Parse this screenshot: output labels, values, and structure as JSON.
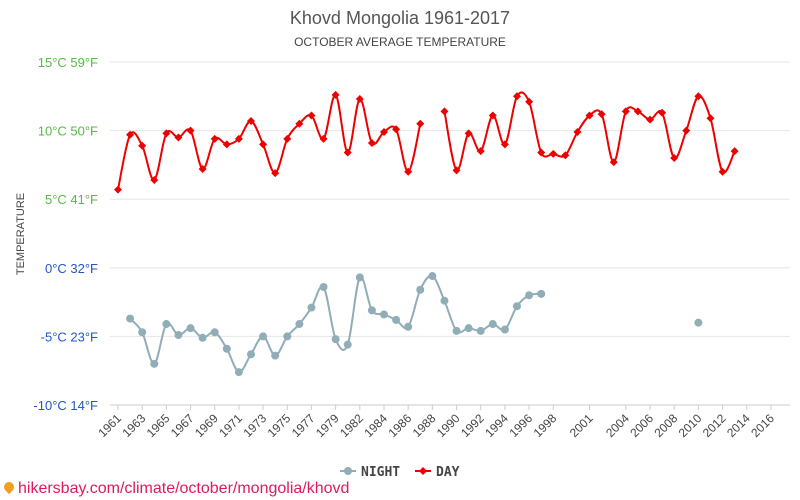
{
  "chart_data": {
    "type": "line",
    "title": "Khovd Mongolia 1961-2017",
    "subtitle": "OCTOBER AVERAGE TEMPERATURE",
    "ylabel": "TEMPERATURE",
    "ylim": [
      -10,
      15
    ],
    "y_ticks": [
      {
        "value": 15,
        "label": "15°C 59°F",
        "color": "#55bb44"
      },
      {
        "value": 10,
        "label": "10°C 50°F",
        "color": "#55bb44"
      },
      {
        "value": 5,
        "label": "5°C 41°F",
        "color": "#55bb44"
      },
      {
        "value": 0,
        "label": "0°C 32°F",
        "color": "#2255cc"
      },
      {
        "value": -5,
        "label": "-5°C 23°F",
        "color": "#2255cc"
      },
      {
        "value": -10,
        "label": "-10°C 14°F",
        "color": "#2255cc"
      }
    ],
    "x_tick_labels": [
      "1961",
      "1963",
      "1965",
      "1967",
      "1969",
      "1971",
      "1973",
      "1975",
      "1977",
      "1979",
      "1982",
      "1984",
      "1986",
      "1988",
      "1990",
      "1992",
      "1994",
      "1996",
      "1998",
      "2001",
      "2004",
      "2006",
      "2008",
      "2010",
      "2012",
      "2014",
      "2016"
    ],
    "x": [
      1961,
      1962,
      1963,
      1964,
      1965,
      1966,
      1967,
      1968,
      1969,
      1970,
      1971,
      1972,
      1973,
      1974,
      1975,
      1976,
      1977,
      1978,
      1979,
      1980,
      1982,
      1983,
      1984,
      1985,
      1986,
      1987,
      1988,
      1989,
      1990,
      1991,
      1992,
      1993,
      1994,
      1995,
      1996,
      1997,
      1998,
      1999,
      2000,
      2001,
      2002,
      2003,
      2004,
      2005,
      2006,
      2007,
      2008,
      2009,
      2010,
      2011,
      2012,
      2013,
      2014,
      2015,
      2016,
      2017
    ],
    "series": [
      {
        "name": "NIGHT",
        "color": "#90adb8",
        "marker": "circle",
        "values": [
          null,
          -3.7,
          -4.7,
          -7.0,
          -4.1,
          -4.9,
          -4.4,
          -5.1,
          -4.7,
          -5.9,
          -7.6,
          -6.3,
          -5.0,
          -6.4,
          -5.0,
          -4.1,
          -2.9,
          -1.4,
          -5.2,
          -5.6,
          -0.7,
          -3.1,
          -3.4,
          -3.8,
          -4.3,
          -1.6,
          -0.6,
          -2.4,
          -4.6,
          -4.4,
          -4.6,
          -4.1,
          -4.5,
          -2.8,
          -2.0,
          -1.9,
          null,
          null,
          null,
          null,
          null,
          null,
          null,
          null,
          null,
          null,
          null,
          null,
          -4.0,
          null,
          null,
          null,
          null,
          null,
          null,
          null
        ]
      },
      {
        "name": "DAY",
        "color": "#ee0000",
        "marker": "diamond",
        "values": [
          5.7,
          9.7,
          8.9,
          6.4,
          9.8,
          9.5,
          10.0,
          7.2,
          9.4,
          9.0,
          9.4,
          10.7,
          9.0,
          6.9,
          9.4,
          10.5,
          11.1,
          9.4,
          12.6,
          8.4,
          12.3,
          9.1,
          9.9,
          10.1,
          7.0,
          10.5,
          null,
          11.4,
          7.1,
          9.8,
          8.5,
          11.1,
          9.0,
          12.5,
          12.1,
          8.4,
          8.3,
          8.2,
          9.9,
          11.1,
          11.2,
          7.7,
          11.4,
          11.4,
          10.8,
          11.3,
          8.0,
          10.0,
          12.5,
          10.9,
          7.0,
          8.5,
          null,
          null,
          null,
          null
        ]
      }
    ],
    "legend": [
      {
        "name": "NIGHT"
      },
      {
        "name": "DAY"
      }
    ],
    "legend_position": "bottom-center",
    "grid": true
  },
  "footer": {
    "url": "hikersbay.com/climate/october/mongolia/khovd"
  }
}
